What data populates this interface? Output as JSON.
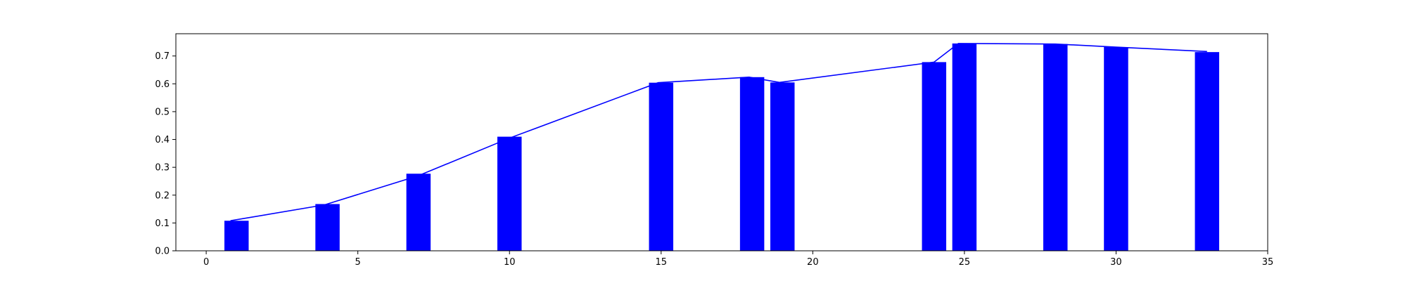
{
  "chart_data": {
    "type": "bar",
    "title": "",
    "xlabel": "",
    "ylabel": "",
    "xlim": [
      -1,
      35
    ],
    "ylim": [
      0,
      0.78
    ],
    "grid": false,
    "bar_width": 0.8,
    "color": "#0000ff",
    "x_ticks": [
      0,
      5,
      10,
      15,
      20,
      25,
      30,
      35
    ],
    "y_ticks": [
      0.0,
      0.1,
      0.2,
      0.3,
      0.4,
      0.5,
      0.6,
      0.7
    ],
    "x_tick_labels": [
      "0",
      "5",
      "10",
      "15",
      "20",
      "25",
      "30",
      "35"
    ],
    "y_tick_labels": [
      "0.0",
      "0.1",
      "0.2",
      "0.3",
      "0.4",
      "0.5",
      "0.6",
      "0.7"
    ],
    "x": [
      1,
      4,
      7,
      10,
      15,
      18,
      19,
      24,
      25,
      28,
      30,
      33
    ],
    "values": [
      0.108,
      0.168,
      0.277,
      0.41,
      0.604,
      0.624,
      0.605,
      0.678,
      0.745,
      0.743,
      0.732,
      0.714
    ],
    "line": {
      "x": [
        0.8,
        3.9,
        7.0,
        10.0,
        14.9,
        17.9,
        18.9,
        24.0,
        24.8,
        28.0,
        30.0,
        33.0
      ],
      "y": [
        0.108,
        0.165,
        0.27,
        0.405,
        0.604,
        0.624,
        0.605,
        0.678,
        0.745,
        0.743,
        0.732,
        0.716
      ]
    }
  }
}
